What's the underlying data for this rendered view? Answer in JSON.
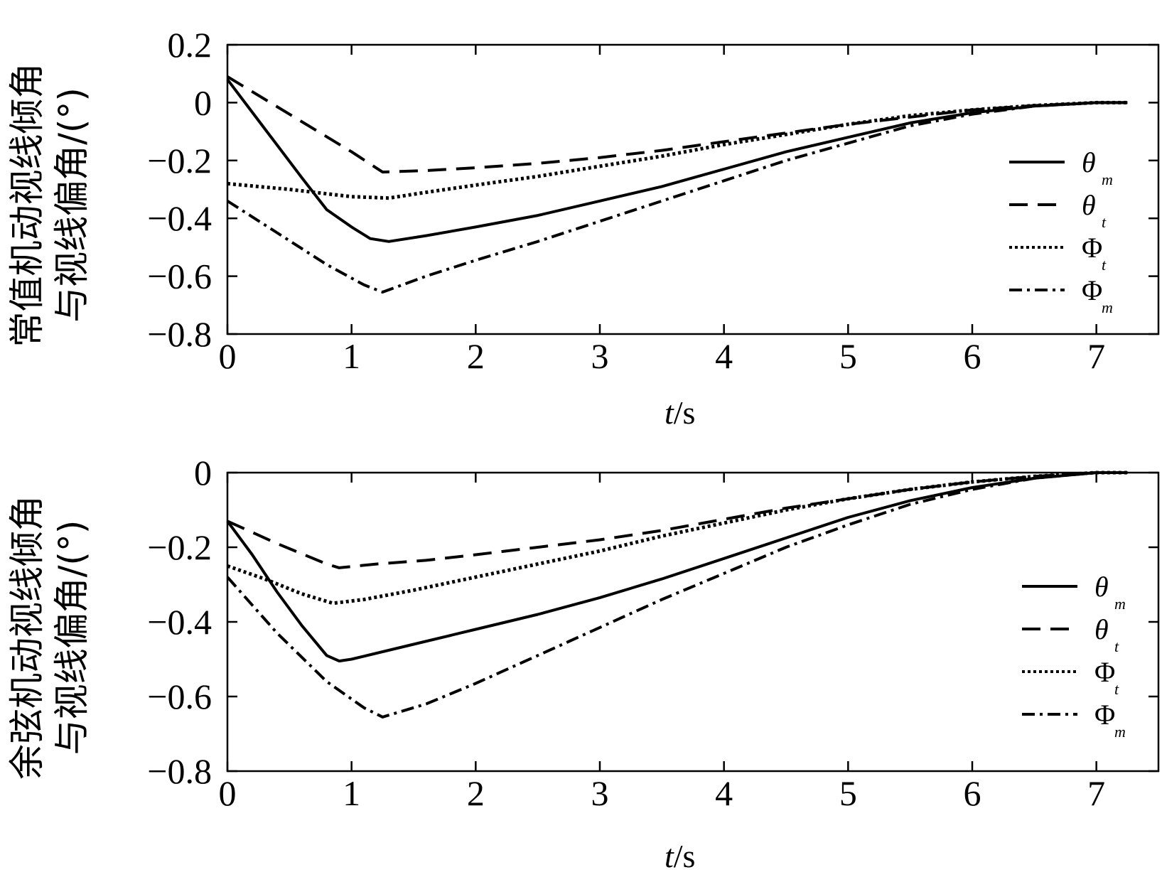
{
  "chart_data": [
    {
      "type": "line",
      "xlabel": "t/s",
      "xlabel_italic": "t",
      "xlabel_unit": "/s",
      "ylabel": [
        "常值机动视线倾角",
        "与视线偏角/(°)"
      ],
      "xlim": [
        0,
        7.5
      ],
      "ylim": [
        -0.8,
        0.2
      ],
      "xticks": [
        "0",
        "1",
        "2",
        "3",
        "4",
        "5",
        "6",
        "7"
      ],
      "yticks": [
        "0.2",
        "0",
        "−0.2",
        "−0.4",
        "−0.6",
        "−0.8"
      ],
      "legend_position": "right",
      "series": [
        {
          "name": "θm",
          "symbol": "θ",
          "sub": "m",
          "italic": true,
          "style": "solid",
          "x": [
            0,
            0.3,
            0.6,
            0.8,
            1.0,
            1.15,
            1.3,
            1.6,
            2,
            2.5,
            3,
            3.5,
            4,
            4.5,
            5,
            5.5,
            6,
            6.5,
            7,
            7.25
          ],
          "y": [
            0.08,
            -0.09,
            -0.26,
            -0.37,
            -0.43,
            -0.47,
            -0.48,
            -0.46,
            -0.43,
            -0.39,
            -0.34,
            -0.29,
            -0.23,
            -0.17,
            -0.12,
            -0.07,
            -0.035,
            -0.012,
            0.0,
            0.0
          ]
        },
        {
          "name": "θt",
          "symbol": "θ",
          "sub": "t",
          "italic": true,
          "style": "dashed",
          "x": [
            0,
            0.5,
            1.0,
            1.25,
            1.6,
            2,
            2.5,
            3,
            3.5,
            4,
            4.5,
            5,
            5.5,
            6,
            6.5,
            7,
            7.25
          ],
          "y": [
            0.09,
            -0.04,
            -0.17,
            -0.24,
            -0.235,
            -0.225,
            -0.21,
            -0.19,
            -0.165,
            -0.135,
            -0.105,
            -0.075,
            -0.05,
            -0.025,
            -0.01,
            0.0,
            0.0
          ]
        },
        {
          "name": "Φt",
          "symbol": "Φ",
          "sub": "t",
          "italic": false,
          "style": "dotted",
          "x": [
            0,
            0.5,
            1.0,
            1.3,
            1.6,
            2,
            2.5,
            3,
            3.5,
            4,
            4.5,
            5,
            5.5,
            6,
            6.5,
            7,
            7.25
          ],
          "y": [
            -0.28,
            -0.3,
            -0.325,
            -0.33,
            -0.31,
            -0.285,
            -0.255,
            -0.22,
            -0.185,
            -0.145,
            -0.11,
            -0.075,
            -0.045,
            -0.025,
            -0.01,
            0.0,
            0.0
          ]
        },
        {
          "name": "Φm",
          "symbol": "Φ",
          "sub": "m",
          "italic": false,
          "style": "dashdot",
          "x": [
            0,
            0.4,
            0.8,
            1.1,
            1.25,
            1.6,
            2,
            2.5,
            3,
            3.5,
            4,
            4.5,
            5,
            5.5,
            6,
            6.5,
            7,
            7.25
          ],
          "y": [
            -0.34,
            -0.45,
            -0.56,
            -0.63,
            -0.655,
            -0.6,
            -0.545,
            -0.48,
            -0.41,
            -0.34,
            -0.27,
            -0.2,
            -0.14,
            -0.08,
            -0.04,
            -0.012,
            0.0,
            0.0
          ]
        }
      ]
    },
    {
      "type": "line",
      "xlabel": "t/s",
      "xlabel_italic": "t",
      "xlabel_unit": "/s",
      "ylabel": [
        "余弦机动视线倾角",
        "与视线偏角/(°)"
      ],
      "xlim": [
        0,
        7.5
      ],
      "ylim": [
        -0.8,
        0
      ],
      "xticks": [
        "0",
        "1",
        "2",
        "3",
        "4",
        "5",
        "6",
        "7"
      ],
      "yticks": [
        "0",
        "−0.2",
        "−0.4",
        "−0.6",
        "−0.8"
      ],
      "legend_position": "right",
      "series": [
        {
          "name": "θm",
          "symbol": "θ",
          "sub": "m",
          "italic": true,
          "style": "solid",
          "x": [
            0,
            0.2,
            0.4,
            0.6,
            0.8,
            0.9,
            1.0,
            1.5,
            2,
            2.5,
            3,
            3.5,
            4,
            4.5,
            5,
            5.5,
            6,
            6.5,
            7,
            7.25
          ],
          "y": [
            -0.13,
            -0.22,
            -0.32,
            -0.41,
            -0.49,
            -0.505,
            -0.5,
            -0.46,
            -0.42,
            -0.38,
            -0.335,
            -0.285,
            -0.23,
            -0.175,
            -0.12,
            -0.075,
            -0.04,
            -0.015,
            0.0,
            0.0
          ]
        },
        {
          "name": "θt",
          "symbol": "θ",
          "sub": "t",
          "italic": true,
          "style": "dashed",
          "x": [
            0,
            0.4,
            0.8,
            0.9,
            1.2,
            1.6,
            2,
            2.5,
            3,
            3.5,
            4,
            4.5,
            5,
            5.5,
            6,
            6.5,
            7,
            7.25
          ],
          "y": [
            -0.13,
            -0.19,
            -0.245,
            -0.255,
            -0.245,
            -0.235,
            -0.22,
            -0.2,
            -0.18,
            -0.155,
            -0.125,
            -0.095,
            -0.07,
            -0.045,
            -0.025,
            -0.01,
            0.0,
            0.0
          ]
        },
        {
          "name": "Φt",
          "symbol": "Φ",
          "sub": "t",
          "italic": false,
          "style": "dotted",
          "x": [
            0,
            0.3,
            0.6,
            0.85,
            1.1,
            1.5,
            2,
            2.5,
            3,
            3.5,
            4,
            4.5,
            5,
            5.5,
            6,
            6.5,
            7,
            7.25
          ],
          "y": [
            -0.25,
            -0.285,
            -0.325,
            -0.35,
            -0.34,
            -0.315,
            -0.28,
            -0.245,
            -0.21,
            -0.17,
            -0.135,
            -0.1,
            -0.07,
            -0.045,
            -0.025,
            -0.01,
            0.0,
            0.0
          ]
        },
        {
          "name": "Φm",
          "symbol": "Φ",
          "sub": "m",
          "italic": false,
          "style": "dashdot",
          "x": [
            0,
            0.4,
            0.8,
            1.1,
            1.25,
            1.6,
            2,
            2.5,
            3,
            3.5,
            4,
            4.5,
            5,
            5.5,
            6,
            6.5,
            7,
            7.25
          ],
          "y": [
            -0.28,
            -0.43,
            -0.56,
            -0.63,
            -0.655,
            -0.62,
            -0.565,
            -0.49,
            -0.415,
            -0.34,
            -0.27,
            -0.2,
            -0.14,
            -0.085,
            -0.045,
            -0.015,
            0.0,
            0.0
          ]
        }
      ]
    }
  ]
}
